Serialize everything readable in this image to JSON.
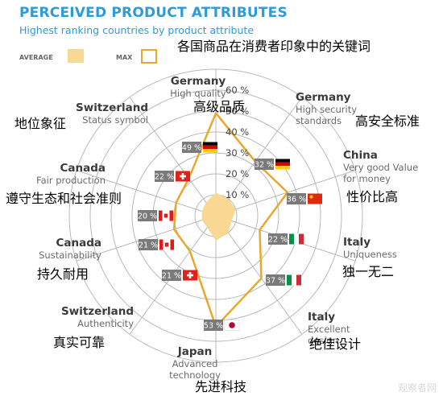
{
  "chart_data": {
    "type": "radar",
    "title": "PERCEIVED PRODUCT ATTRIBUTES",
    "subtitle": "Highest ranking countries by product attribute",
    "annotation_title": "各国商品在消费者印象中的关键词",
    "legend": [
      {
        "label": "AVERAGE",
        "color": "#f9d893"
      },
      {
        "label": "MAX",
        "color": "#e9a82b"
      }
    ],
    "radial_ticks": [
      "10 %",
      "20 %",
      "30 %",
      "40 %",
      "50 %",
      "60 %"
    ],
    "rmax": 70,
    "axes": [
      {
        "country": "Germany",
        "attribute": "High quality",
        "zh": "高级品质",
        "max_value": 49,
        "max_label": "49 %",
        "average": 11
      },
      {
        "country": "Germany",
        "attribute": "High security standards",
        "zh": "高安全标准",
        "max_value": 32,
        "max_label": "32 %",
        "average": 10
      },
      {
        "country": "China",
        "attribute": "Very good Value for money",
        "zh": "性价比高",
        "max_value": 36,
        "max_label": "36 %",
        "average": 10
      },
      {
        "country": "Italy",
        "attribute": "Uniqueness",
        "zh": "独一无二",
        "max_value": 22,
        "max_label": "22 %",
        "average": 8
      },
      {
        "country": "Italy",
        "attribute": "Excellent design",
        "zh": "绝佳设计",
        "max_value": 37,
        "max_label": "37 %",
        "average": 10
      },
      {
        "country": "Japan",
        "attribute": "Advanced technology",
        "zh": "先进科技",
        "max_value": 53,
        "max_label": "53 %",
        "average": 12
      },
      {
        "country": "Switzerland",
        "attribute": "Authenticity",
        "zh": "真实可靠",
        "max_value": 21,
        "max_label": "21 %",
        "average": 7
      },
      {
        "country": "Canada",
        "attribute": "Sustainability",
        "zh": "持久耐用",
        "max_value": 21,
        "max_label": "21 %",
        "average": 7
      },
      {
        "country": "Canada",
        "attribute": "Fair production",
        "zh": "遵守生态和社会准则",
        "max_value": 20,
        "max_label": "20 %",
        "average": 7
      },
      {
        "country": "Switzerland",
        "attribute": "Status symbol",
        "zh": "地位象征",
        "max_value": 22,
        "max_label": "22 %",
        "average": 8
      }
    ]
  },
  "watermark": "观察者网"
}
